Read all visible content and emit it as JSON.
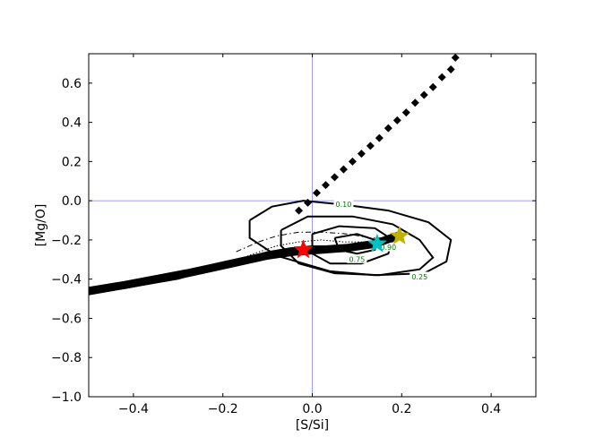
{
  "chart_data": {
    "type": "scatter",
    "title": "",
    "xlabel": "[S/Si]",
    "ylabel": "[Mg/O]",
    "xlim": [
      -0.5,
      0.5
    ],
    "ylim": [
      -1.0,
      0.75
    ],
    "xticks": [
      -0.4,
      -0.2,
      0.0,
      0.2,
      0.4
    ],
    "xtick_labels": [
      "−0.4",
      "−0.2",
      "0.0",
      "0.2",
      "0.4"
    ],
    "yticks": [
      -1.0,
      -0.8,
      -0.6,
      -0.4,
      -0.2,
      0.0,
      0.2,
      0.4,
      0.6
    ],
    "ytick_labels": [
      "−1.0",
      "−0.8",
      "−0.6",
      "−0.4",
      "−0.2",
      "0.0",
      "0.2",
      "0.4",
      "0.6"
    ],
    "grid": false,
    "reference_lines": {
      "x": 0.0,
      "y": 0.0,
      "color": "#8080ff"
    },
    "series": [
      {
        "kind": "diamond-markers",
        "color": "#000000",
        "points": [
          [
            -0.03,
            -0.05
          ],
          [
            -0.01,
            -0.01
          ],
          [
            0.01,
            0.04
          ],
          [
            0.03,
            0.08
          ],
          [
            0.05,
            0.12
          ],
          [
            0.07,
            0.16
          ],
          [
            0.09,
            0.2
          ],
          [
            0.11,
            0.24
          ],
          [
            0.13,
            0.28
          ],
          [
            0.15,
            0.32
          ],
          [
            0.17,
            0.37
          ],
          [
            0.19,
            0.41
          ],
          [
            0.21,
            0.45
          ],
          [
            0.23,
            0.5
          ],
          [
            0.25,
            0.54
          ],
          [
            0.27,
            0.58
          ],
          [
            0.29,
            0.63
          ],
          [
            0.31,
            0.67
          ],
          [
            0.32,
            0.73
          ]
        ]
      },
      {
        "kind": "thick-band",
        "color": "#000000",
        "points": [
          [
            -0.5,
            -0.46
          ],
          [
            -0.42,
            -0.43
          ],
          [
            -0.35,
            -0.4
          ],
          [
            -0.28,
            -0.37
          ],
          [
            -0.22,
            -0.34
          ],
          [
            -0.16,
            -0.31
          ],
          [
            -0.1,
            -0.28
          ],
          [
            -0.04,
            -0.26
          ],
          [
            0.02,
            -0.25
          ],
          [
            0.08,
            -0.24
          ],
          [
            0.14,
            -0.22
          ],
          [
            0.19,
            -0.18
          ]
        ]
      },
      {
        "kind": "thin-line",
        "color": "#000000",
        "points": [
          [
            -0.5,
            -0.48
          ],
          [
            -0.4,
            -0.44
          ],
          [
            -0.3,
            -0.4
          ],
          [
            -0.22,
            -0.35
          ],
          [
            -0.15,
            -0.29
          ],
          [
            -0.1,
            -0.26
          ],
          [
            -0.05,
            -0.24
          ],
          [
            0.0,
            -0.23
          ],
          [
            0.05,
            -0.23
          ],
          [
            0.1,
            -0.23
          ],
          [
            0.15,
            -0.22
          ],
          [
            0.19,
            -0.19
          ]
        ]
      },
      {
        "kind": "dotted-line",
        "color": "#000000",
        "points": [
          [
            -0.48,
            -0.46
          ],
          [
            -0.38,
            -0.42
          ],
          [
            -0.28,
            -0.37
          ],
          [
            -0.2,
            -0.33
          ],
          [
            -0.13,
            -0.27
          ],
          [
            -0.08,
            -0.23
          ],
          [
            -0.03,
            -0.21
          ],
          [
            0.02,
            -0.2
          ],
          [
            0.07,
            -0.21
          ],
          [
            0.12,
            -0.21
          ],
          [
            0.17,
            -0.2
          ]
        ]
      },
      {
        "kind": "dashdot-line",
        "color": "#000000",
        "points": [
          [
            -0.17,
            -0.26
          ],
          [
            -0.12,
            -0.21
          ],
          [
            -0.08,
            -0.18
          ],
          [
            -0.03,
            -0.16
          ],
          [
            0.02,
            -0.16
          ],
          [
            0.08,
            -0.17
          ],
          [
            0.13,
            -0.19
          ],
          [
            0.18,
            -0.19
          ]
        ]
      }
    ],
    "contours": [
      {
        "level": "0.10",
        "points": [
          [
            -0.14,
            -0.1
          ],
          [
            -0.09,
            -0.03
          ],
          [
            -0.02,
            0.0
          ],
          [
            0.07,
            -0.02
          ],
          [
            0.17,
            -0.05
          ],
          [
            0.26,
            -0.11
          ],
          [
            0.31,
            -0.2
          ],
          [
            0.3,
            -0.31
          ],
          [
            0.25,
            -0.37
          ],
          [
            0.14,
            -0.38
          ],
          [
            0.04,
            -0.36
          ],
          [
            -0.08,
            -0.28
          ],
          [
            -0.14,
            -0.19
          ],
          [
            -0.14,
            -0.1
          ]
        ],
        "label_at": [
          0.07,
          -0.02
        ]
      },
      {
        "level": "0.25",
        "points": [
          [
            -0.07,
            -0.15
          ],
          [
            -0.01,
            -0.08
          ],
          [
            0.09,
            -0.08
          ],
          [
            0.18,
            -0.12
          ],
          [
            0.24,
            -0.2
          ],
          [
            0.27,
            -0.29
          ],
          [
            0.24,
            -0.35
          ],
          [
            0.15,
            -0.38
          ],
          [
            0.05,
            -0.37
          ],
          [
            -0.03,
            -0.32
          ],
          [
            -0.07,
            -0.23
          ],
          [
            -0.07,
            -0.15
          ]
        ],
        "label_at": [
          0.24,
          -0.39
        ]
      },
      {
        "level": "0.75",
        "points": [
          [
            0.0,
            -0.17
          ],
          [
            0.06,
            -0.13
          ],
          [
            0.14,
            -0.14
          ],
          [
            0.18,
            -0.2
          ],
          [
            0.17,
            -0.27
          ],
          [
            0.11,
            -0.32
          ],
          [
            0.04,
            -0.32
          ],
          [
            0.0,
            -0.27
          ],
          [
            0.0,
            -0.17
          ]
        ],
        "label_at": [
          0.1,
          -0.3
        ]
      },
      {
        "level": "0.90",
        "points": [
          [
            0.05,
            -0.19
          ],
          [
            0.1,
            -0.17
          ],
          [
            0.14,
            -0.2
          ],
          [
            0.14,
            -0.25
          ],
          [
            0.1,
            -0.27
          ],
          [
            0.06,
            -0.25
          ],
          [
            0.05,
            -0.19
          ]
        ],
        "label_at": [
          0.17,
          -0.24
        ]
      }
    ],
    "stars": [
      {
        "x": -0.02,
        "y": -0.25,
        "color": "#ff0000"
      },
      {
        "x": 0.145,
        "y": -0.22,
        "color": "#00c0c0"
      },
      {
        "x": 0.195,
        "y": -0.18,
        "color": "#c0b000"
      }
    ]
  }
}
